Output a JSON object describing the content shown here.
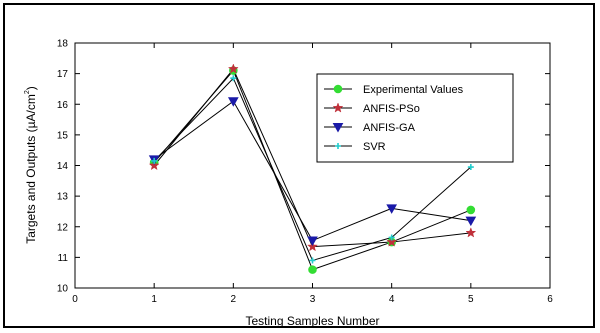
{
  "chart_data": {
    "type": "line",
    "title": "",
    "xlabel": "Testing Samples Number",
    "ylabel": "Targets and Outputs (µA/cm",
    "ylabel_sup": "2",
    "ylabel_close": ")",
    "xlim": [
      0,
      6
    ],
    "ylim": [
      10,
      18
    ],
    "xticks": [
      0,
      1,
      2,
      3,
      4,
      5,
      6
    ],
    "yticks": [
      10,
      11,
      12,
      13,
      14,
      15,
      16,
      17,
      18
    ],
    "grid": false,
    "legend": "top-right",
    "x": [
      1,
      2,
      3,
      4,
      5
    ],
    "series": [
      {
        "name": "Experimental Values",
        "values": [
          14.1,
          17.1,
          10.6,
          11.5,
          12.55
        ],
        "color": "#33dd33",
        "marker": "circle"
      },
      {
        "name": "ANFIS-PSo",
        "values": [
          14.0,
          17.15,
          11.35,
          11.5,
          11.8
        ],
        "color": "#c0303a",
        "marker": "star"
      },
      {
        "name": "ANFIS-GA",
        "values": [
          14.2,
          16.1,
          11.55,
          12.6,
          12.2
        ],
        "color": "#1a1aa8",
        "marker": "triangle-down"
      },
      {
        "name": "SVR",
        "values": [
          14.15,
          16.85,
          10.9,
          11.65,
          13.95
        ],
        "color": "#22cccc",
        "marker": "plus"
      }
    ]
  }
}
